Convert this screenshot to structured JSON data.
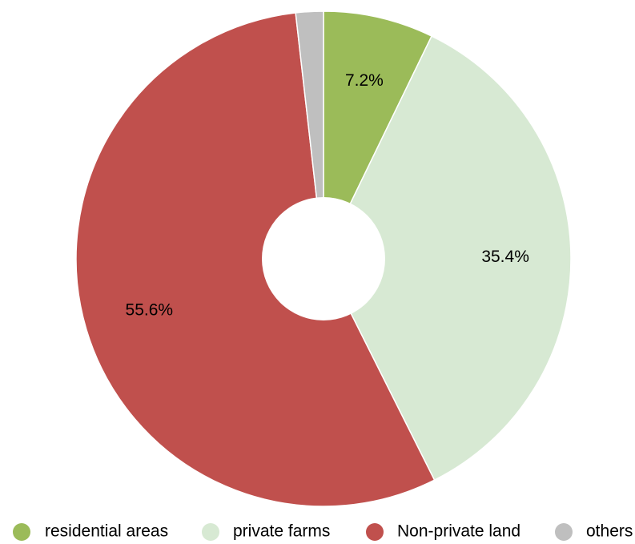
{
  "chart_data": {
    "type": "pie",
    "style": "donut",
    "categories": [
      "residential areas",
      "private farms",
      "Non-private land",
      "others"
    ],
    "values": [
      7.2,
      35.4,
      55.6,
      1.8
    ],
    "data_labels": [
      "7.2%",
      "35.4%",
      "55.6%",
      ""
    ],
    "colors": [
      "#9BBB59",
      "#D7E9D3",
      "#C0504D",
      "#BFBFBF"
    ],
    "legend_position": "bottom",
    "start_angle": "top, clockwise"
  }
}
